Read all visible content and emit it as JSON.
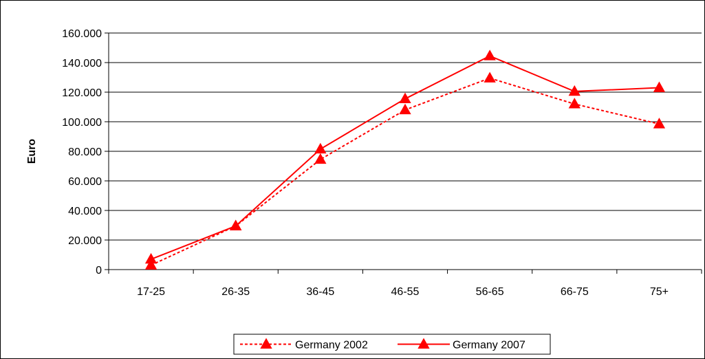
{
  "chart_data": {
    "type": "line",
    "title": "",
    "xlabel": "",
    "ylabel": "Euro",
    "categories": [
      "17-25",
      "26-35",
      "36-45",
      "46-55",
      "56-65",
      "66-75",
      "75+"
    ],
    "ylim": [
      0,
      160000
    ],
    "yticks": [
      0,
      20000,
      40000,
      60000,
      80000,
      100000,
      120000,
      140000,
      160000
    ],
    "ytick_labels": [
      "0",
      "20.000",
      "40.000",
      "60.000",
      "80.000",
      "100.000",
      "120.000",
      "140.000",
      "160.000"
    ],
    "grid": true,
    "legend_position": "bottom",
    "series": [
      {
        "name": "Germany 2002",
        "values": [
          3000,
          29500,
          74500,
          108000,
          129500,
          112000,
          98500
        ],
        "color": "#ff0000",
        "line_style": "dashed",
        "marker": "triangle"
      },
      {
        "name": "Germany 2007",
        "values": [
          7000,
          29500,
          81500,
          115500,
          144500,
          120500,
          123000
        ],
        "color": "#ff0000",
        "line_style": "solid",
        "marker": "triangle"
      }
    ]
  }
}
